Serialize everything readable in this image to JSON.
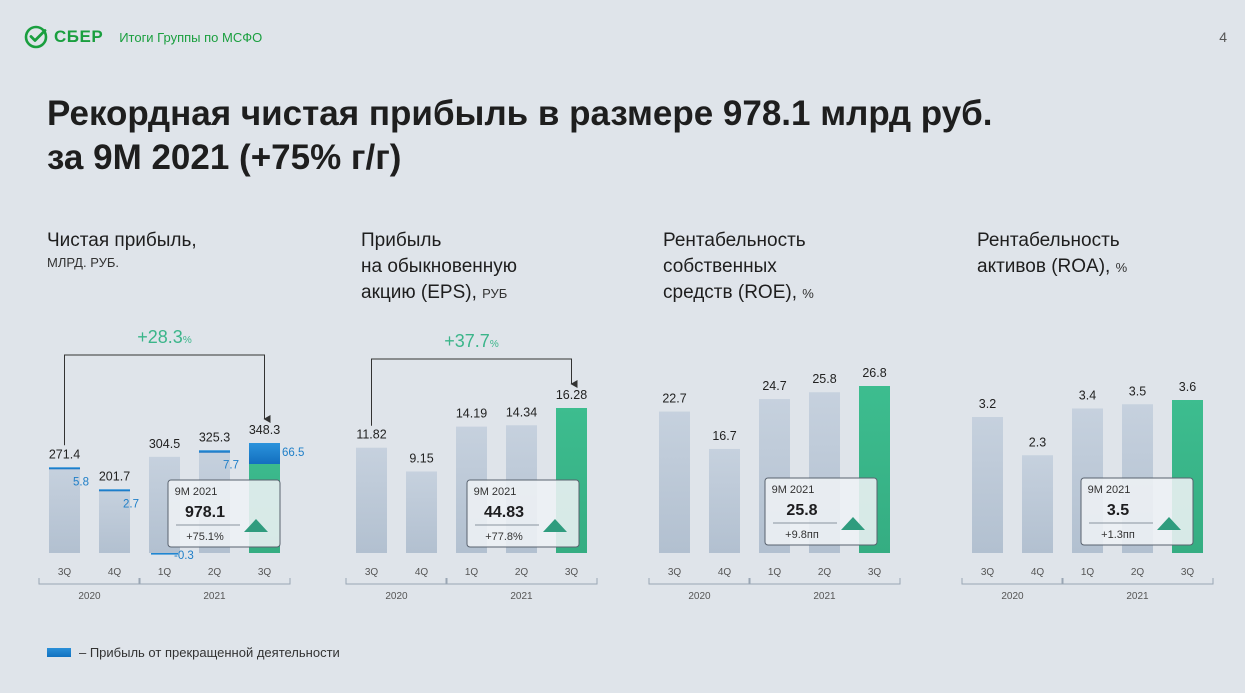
{
  "header": {
    "brand": "СБЕР",
    "subtitle": "Итоги Группы по МСФО",
    "page_number": "4"
  },
  "title": {
    "line1": "Рекордная чистая прибыль в размере 978.1 млрд руб.",
    "line2": "за 9M 2021 (+75% г/г)"
  },
  "panels": {
    "np": {
      "l1": "Чистая прибыль,",
      "unit": "МЛРД. РУБ."
    },
    "eps": {
      "l1": "Прибыль",
      "l2": "на обыкновенную",
      "l3": "акцию (EPS), ",
      "unit": "РУБ"
    },
    "roe": {
      "l1": "Рентабельность",
      "l2": "собственных",
      "l3": "средств (ROE), ",
      "unit": "%"
    },
    "roa": {
      "l1": "Рентабельность",
      "l2": "активов (ROA), ",
      "unit": "%"
    }
  },
  "legend": {
    "label": "– Прибыль от прекращенной деятельности"
  },
  "colors": {
    "bar": "#c3cedc",
    "highlight": "#3dbd8f",
    "discontinued": "#1f86d2",
    "growth": "#3bb58a",
    "brand": "#1a9f3f"
  },
  "chart_data": [
    {
      "type": "bar",
      "title": "Чистая прибыль, МЛРД. РУБ.",
      "categories": [
        "3Q",
        "4Q",
        "1Q",
        "2Q",
        "3Q"
      ],
      "groups": [
        {
          "label": "2020",
          "from": 0,
          "to": 1
        },
        {
          "label": "2021",
          "from": 2,
          "to": 4
        }
      ],
      "values": [
        271.4,
        201.7,
        304.5,
        325.3,
        348.3
      ],
      "value_labels": [
        "271.4",
        "201.7",
        "304.5",
        "325.3",
        "348.3"
      ],
      "discontinued": [
        5.8,
        2.7,
        -0.3,
        7.7,
        66.5
      ],
      "discontinued_labels": [
        "5.8",
        "2.7",
        "-0.3",
        "7.7",
        "66.5"
      ],
      "highlight_index": 4,
      "growth": {
        "label": "+28.3",
        "suffix": "%",
        "from": 0,
        "to": 4
      },
      "summary": {
        "period": "9M 2021",
        "value": "978.1",
        "change": "+75.1%"
      },
      "ylim": [
        -10,
        380
      ]
    },
    {
      "type": "bar",
      "title": "Прибыль на обыкновенную акцию (EPS), РУБ",
      "categories": [
        "3Q",
        "4Q",
        "1Q",
        "2Q",
        "3Q"
      ],
      "groups": [
        {
          "label": "2020",
          "from": 0,
          "to": 1
        },
        {
          "label": "2021",
          "from": 2,
          "to": 4
        }
      ],
      "values": [
        11.82,
        9.15,
        14.19,
        14.34,
        16.28
      ],
      "value_labels": [
        "11.82",
        "9.15",
        "14.19",
        "14.34",
        "16.28"
      ],
      "highlight_index": 4,
      "growth": {
        "label": "+37.7",
        "suffix": "%",
        "from": 0,
        "to": 4
      },
      "summary": {
        "period": "9M 2021",
        "value": "44.83",
        "change": "+77.8%"
      },
      "ylim": [
        0,
        18
      ]
    },
    {
      "type": "bar",
      "title": "Рентабельность собственных средств (ROE), %",
      "categories": [
        "3Q",
        "4Q",
        "1Q",
        "2Q",
        "3Q"
      ],
      "groups": [
        {
          "label": "2020",
          "from": 0,
          "to": 1
        },
        {
          "label": "2021",
          "from": 2,
          "to": 4
        }
      ],
      "values": [
        22.7,
        16.7,
        24.7,
        25.8,
        26.8
      ],
      "value_labels": [
        "22.7",
        "16.7",
        "24.7",
        "25.8",
        "26.8"
      ],
      "highlight_index": 4,
      "summary": {
        "period": "9M 2021",
        "value": "25.8",
        "change": "+9.8пп"
      },
      "ylim": [
        0,
        30
      ]
    },
    {
      "type": "bar",
      "title": "Рентабельность активов (ROA), %",
      "categories": [
        "3Q",
        "4Q",
        "1Q",
        "2Q",
        "3Q"
      ],
      "groups": [
        {
          "label": "2020",
          "from": 0,
          "to": 1
        },
        {
          "label": "2021",
          "from": 2,
          "to": 4
        }
      ],
      "values": [
        3.2,
        2.3,
        3.4,
        3.5,
        3.6
      ],
      "value_labels": [
        "3.2",
        "2.3",
        "3.4",
        "3.5",
        "3.6"
      ],
      "highlight_index": 4,
      "summary": {
        "period": "9M 2021",
        "value": "3.5",
        "change": "+1.3пп"
      },
      "ylim": [
        0,
        4
      ]
    }
  ]
}
